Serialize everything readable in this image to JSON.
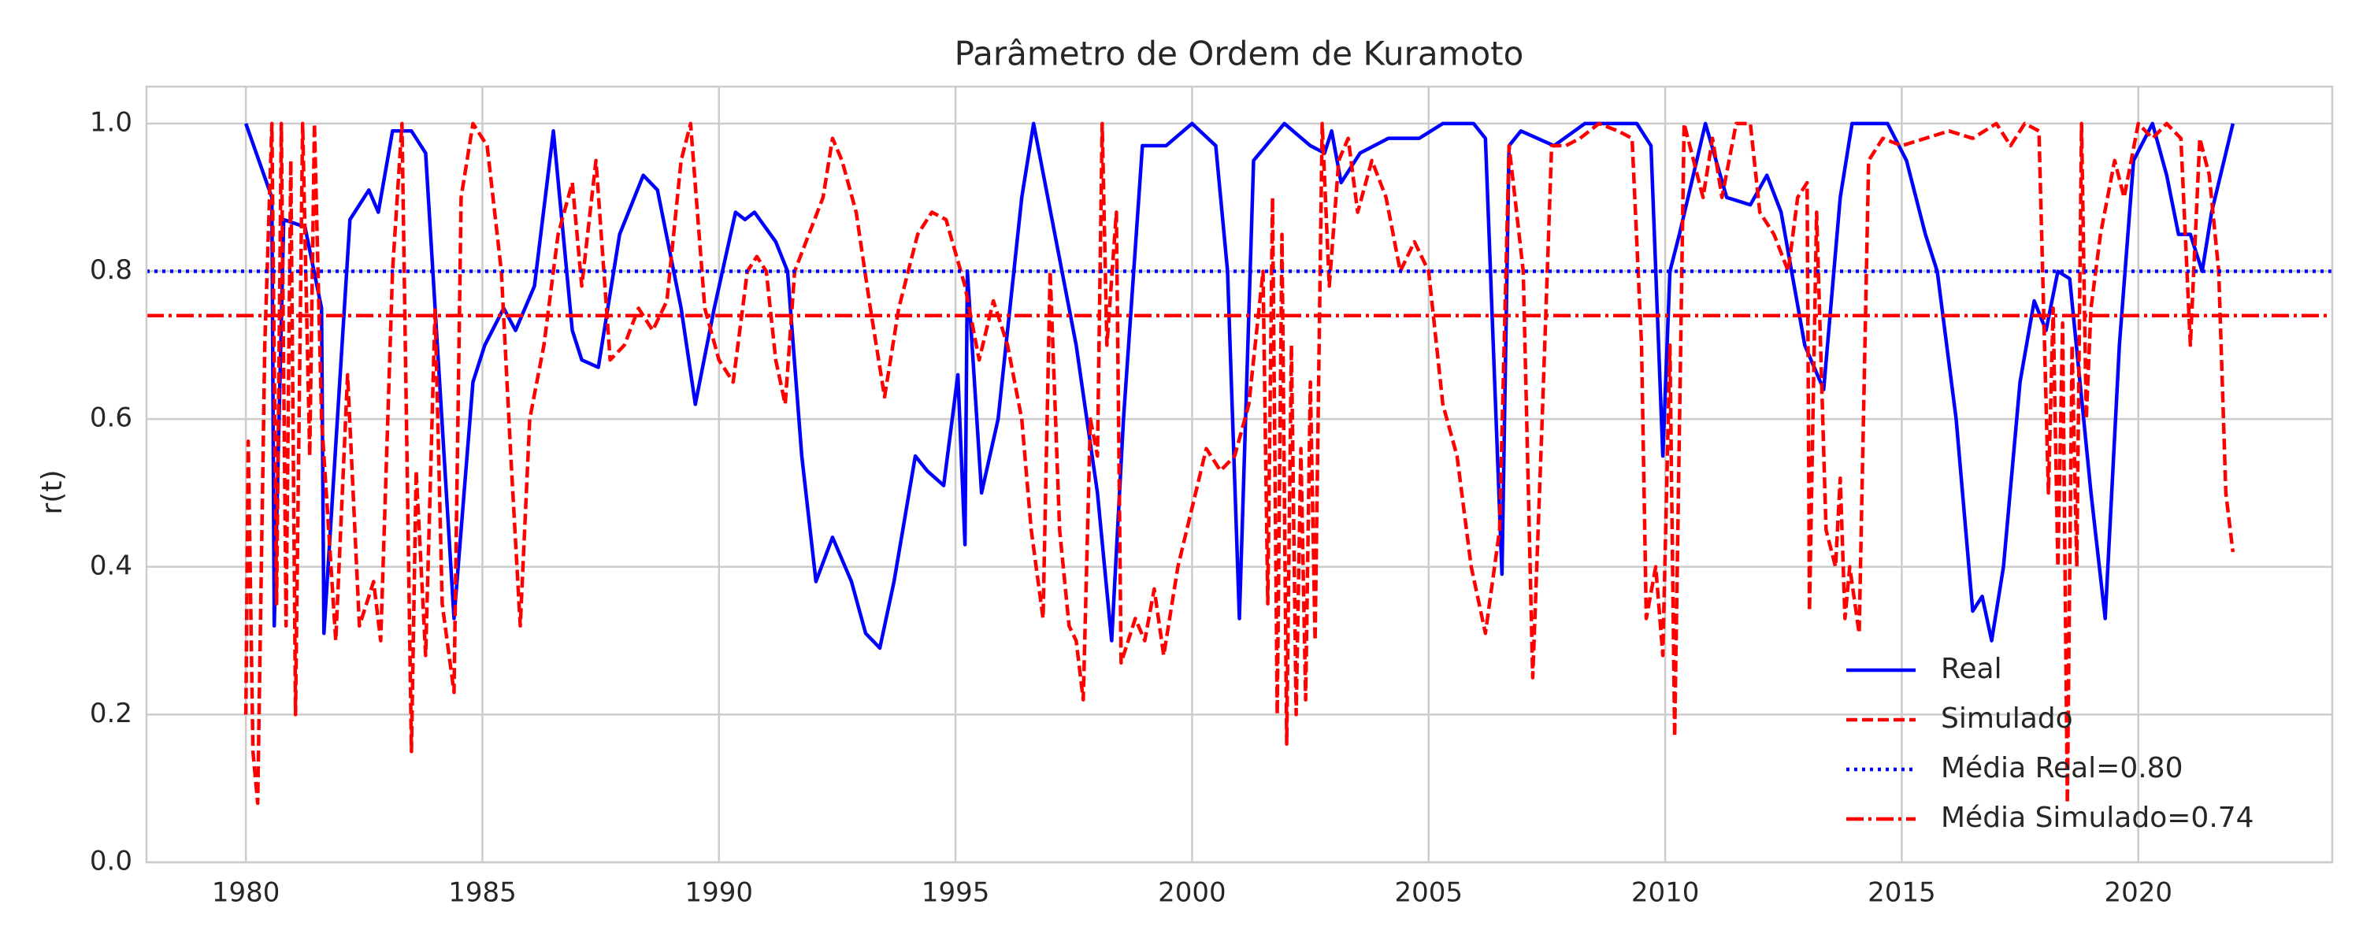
{
  "chart_data": {
    "type": "line",
    "title": "Parâmetro de Ordem de Kuramoto",
    "y_label": "r(t)",
    "xlim": [
      1977.9,
      2024.1
    ],
    "ylim": [
      0,
      1.05
    ],
    "xticks": [
      1980,
      1985,
      1990,
      1995,
      2000,
      2005,
      2010,
      2015,
      2020
    ],
    "yticks": [
      {
        "value": 0,
        "label": "0.0"
      },
      {
        "value": 0.2,
        "label": "0.2"
      },
      {
        "value": 0.4,
        "label": "0.4"
      },
      {
        "value": 0.6,
        "label": "0.6"
      },
      {
        "value": 0.8,
        "label": "0.8"
      },
      {
        "value": 1.0,
        "label": "1.0"
      }
    ],
    "grid": true,
    "legend_position": "lower right",
    "series": [
      {
        "name": "Real",
        "color": "#0000ff",
        "style": "solid",
        "x": [
          1980.0,
          1980.55,
          1980.6,
          1980.8,
          1981.25,
          1981.6,
          1981.65,
          1982.2,
          1982.6,
          1982.8,
          1983.1,
          1983.5,
          1983.8,
          1984.4,
          1984.8,
          1985.05,
          1985.45,
          1985.7,
          1986.1,
          1986.5,
          1986.9,
          1987.1,
          1987.45,
          1987.9,
          1988.4,
          1988.7,
          1989.2,
          1989.5,
          1989.9,
          1990.35,
          1990.55,
          1990.75,
          1991.2,
          1991.45,
          1991.75,
          1992.05,
          1992.4,
          1992.8,
          1993.1,
          1993.4,
          1993.7,
          1994.15,
          1994.4,
          1994.75,
          1995.05,
          1995.2,
          1995.25,
          1995.55,
          1995.9,
          1996.4,
          1996.65,
          1997.1,
          1997.55,
          1998.0,
          1998.3,
          1998.55,
          1998.95,
          1999.45,
          2000.0,
          2000.5,
          2000.75,
          2001.0,
          2001.3,
          2001.95,
          2002.5,
          2002.8,
          2002.95,
          2003.15,
          2003.55,
          2004.15,
          2004.8,
          2005.3,
          2005.95,
          2006.2,
          2006.55,
          2006.7,
          2006.95,
          2007.65,
          2008.3,
          2009.4,
          2009.7,
          2009.95,
          2010.1,
          2010.3,
          2010.85,
          2011.3,
          2011.8,
          2012.15,
          2012.45,
          2012.95,
          2013.35,
          2013.7,
          2013.95,
          2014.7,
          2015.1,
          2015.5,
          2015.75,
          2016.15,
          2016.5,
          2016.7,
          2016.9,
          2017.15,
          2017.5,
          2017.8,
          2018.05,
          2018.3,
          2018.55,
          2019.0,
          2019.3,
          2019.6,
          2019.9,
          2020.3,
          2020.6,
          2020.85,
          2021.1,
          2021.35,
          2021.55,
          2022.0
        ],
        "values": [
          1.0,
          0.9,
          0.32,
          0.87,
          0.86,
          0.75,
          0.31,
          0.87,
          0.91,
          0.88,
          0.99,
          0.99,
          0.96,
          0.33,
          0.65,
          0.7,
          0.75,
          0.72,
          0.78,
          0.99,
          0.72,
          0.68,
          0.67,
          0.85,
          0.93,
          0.91,
          0.75,
          0.62,
          0.75,
          0.88,
          0.87,
          0.88,
          0.84,
          0.8,
          0.55,
          0.38,
          0.44,
          0.38,
          0.31,
          0.29,
          0.38,
          0.55,
          0.53,
          0.51,
          0.66,
          0.43,
          0.8,
          0.5,
          0.6,
          0.9,
          1.0,
          0.85,
          0.7,
          0.5,
          0.3,
          0.6,
          0.97,
          0.97,
          1.0,
          0.97,
          0.8,
          0.33,
          0.95,
          1.0,
          0.97,
          0.96,
          0.99,
          0.92,
          0.96,
          0.98,
          0.98,
          1.0,
          1.0,
          0.98,
          0.39,
          0.97,
          0.99,
          0.97,
          1.0,
          1.0,
          0.97,
          0.55,
          0.8,
          0.85,
          1.0,
          0.9,
          0.89,
          0.93,
          0.88,
          0.7,
          0.64,
          0.9,
          1.0,
          1.0,
          0.95,
          0.85,
          0.8,
          0.6,
          0.34,
          0.36,
          0.3,
          0.4,
          0.65,
          0.76,
          0.72,
          0.8,
          0.79,
          0.5,
          0.33,
          0.7,
          0.95,
          1.0,
          0.93,
          0.85,
          0.85,
          0.8,
          0.88,
          1.0
        ]
      },
      {
        "name": "Simulado",
        "color": "#ff0000",
        "style": "dashed",
        "x": [
          1980.0,
          1980.05,
          1980.15,
          1980.25,
          1980.4,
          1980.55,
          1980.65,
          1980.75,
          1980.85,
          1980.95,
          1981.05,
          1981.2,
          1981.35,
          1981.45,
          1981.6,
          1981.9,
          1982.15,
          1982.4,
          1982.7,
          1982.85,
          1983.1,
          1983.3,
          1983.5,
          1983.6,
          1983.8,
          1984.0,
          1984.15,
          1984.4,
          1984.55,
          1984.8,
          1985.1,
          1985.4,
          1985.6,
          1985.8,
          1986.0,
          1986.3,
          1986.6,
          1986.9,
          1987.1,
          1987.4,
          1987.7,
          1988.0,
          1988.3,
          1988.6,
          1988.9,
          1989.2,
          1989.4,
          1989.7,
          1990.0,
          1990.3,
          1990.6,
          1990.8,
          1991.0,
          1991.2,
          1991.4,
          1991.6,
          1991.9,
          1992.2,
          1992.4,
          1992.6,
          1992.9,
          1993.2,
          1993.5,
          1993.8,
          1994.2,
          1994.5,
          1994.8,
          1995.2,
          1995.5,
          1995.8,
          1996.1,
          1996.4,
          1996.6,
          1996.85,
          1997.0,
          1997.2,
          1997.4,
          1997.55,
          1997.7,
          1997.85,
          1998.0,
          1998.1,
          1998.2,
          1998.4,
          1998.5,
          1998.8,
          1999.0,
          1999.2,
          1999.4,
          1999.7,
          2000.0,
          2000.3,
          2000.6,
          2000.9,
          2001.2,
          2001.5,
          2001.6,
          2001.7,
          2001.8,
          2001.9,
          2002.0,
          2002.1,
          2002.2,
          2002.3,
          2002.4,
          2002.5,
          2002.6,
          2002.75,
          2002.9,
          2003.1,
          2003.3,
          2003.5,
          2003.8,
          2004.1,
          2004.4,
          2004.7,
          2005.0,
          2005.3,
          2005.6,
          2005.9,
          2006.2,
          2006.5,
          2006.7,
          2007.0,
          2007.2,
          2007.4,
          2007.6,
          2007.9,
          2008.2,
          2008.6,
          2009.0,
          2009.3,
          2009.5,
          2009.6,
          2009.8,
          2009.95,
          2010.1,
          2010.2,
          2010.4,
          2010.6,
          2010.8,
          2011.0,
          2011.2,
          2011.5,
          2011.8,
          2012.0,
          2012.3,
          2012.6,
          2012.8,
          2013.0,
          2013.05,
          2013.2,
          2013.4,
          2013.6,
          2013.7,
          2013.8,
          2013.9,
          2014.1,
          2014.3,
          2014.6,
          2015.0,
          2015.5,
          2016.0,
          2016.5,
          2017.0,
          2017.3,
          2017.6,
          2017.9,
          2018.1,
          2018.2,
          2018.3,
          2018.4,
          2018.5,
          2018.6,
          2018.7,
          2018.8,
          2018.9,
          2019.0,
          2019.2,
          2019.5,
          2019.7,
          2020.0,
          2020.3,
          2020.6,
          2020.9,
          2021.1,
          2021.3,
          2021.5,
          2021.7,
          2021.85,
          2022.0
        ],
        "values": [
          0.2,
          0.57,
          0.15,
          0.08,
          0.7,
          1.0,
          0.35,
          1.0,
          0.32,
          0.95,
          0.2,
          1.0,
          0.55,
          1.0,
          0.6,
          0.3,
          0.66,
          0.32,
          0.38,
          0.3,
          0.8,
          1.0,
          0.15,
          0.53,
          0.28,
          0.75,
          0.35,
          0.23,
          0.9,
          1.0,
          0.97,
          0.8,
          0.55,
          0.32,
          0.6,
          0.7,
          0.85,
          0.92,
          0.78,
          0.95,
          0.68,
          0.7,
          0.75,
          0.72,
          0.76,
          0.95,
          1.0,
          0.75,
          0.68,
          0.65,
          0.8,
          0.82,
          0.8,
          0.68,
          0.62,
          0.8,
          0.85,
          0.9,
          0.98,
          0.95,
          0.88,
          0.75,
          0.63,
          0.75,
          0.85,
          0.88,
          0.87,
          0.78,
          0.68,
          0.76,
          0.7,
          0.6,
          0.45,
          0.33,
          0.8,
          0.45,
          0.32,
          0.3,
          0.22,
          0.6,
          0.55,
          1.0,
          0.7,
          0.88,
          0.27,
          0.33,
          0.3,
          0.37,
          0.28,
          0.4,
          0.48,
          0.56,
          0.53,
          0.55,
          0.62,
          0.8,
          0.35,
          0.9,
          0.2,
          0.85,
          0.16,
          0.7,
          0.2,
          0.56,
          0.22,
          0.65,
          0.3,
          1.0,
          0.78,
          0.95,
          0.98,
          0.88,
          0.95,
          0.9,
          0.8,
          0.84,
          0.8,
          0.62,
          0.55,
          0.4,
          0.31,
          0.45,
          0.97,
          0.8,
          0.25,
          0.6,
          0.97,
          0.97,
          0.98,
          1.0,
          0.99,
          0.98,
          0.7,
          0.33,
          0.4,
          0.28,
          0.7,
          0.17,
          1.0,
          0.95,
          0.9,
          0.98,
          0.9,
          1.0,
          1.0,
          0.88,
          0.85,
          0.8,
          0.9,
          0.92,
          0.34,
          0.88,
          0.45,
          0.4,
          0.52,
          0.33,
          0.4,
          0.31,
          0.95,
          0.98,
          0.97,
          0.98,
          0.99,
          0.98,
          1.0,
          0.97,
          1.0,
          0.99,
          0.5,
          0.75,
          0.4,
          0.73,
          0.08,
          0.7,
          0.4,
          1.0,
          0.6,
          0.75,
          0.85,
          0.95,
          0.9,
          1.0,
          0.98,
          1.0,
          0.98,
          0.7,
          0.98,
          0.93,
          0.8,
          0.5,
          0.42
        ]
      }
    ],
    "hlines": [
      {
        "name": "Média Real=0.80",
        "value": 0.8,
        "color": "#0000ff",
        "style": "dotted"
      },
      {
        "name": "Média Simulado=0.74",
        "value": 0.74,
        "color": "#ff0000",
        "style": "dashdot"
      }
    ]
  }
}
